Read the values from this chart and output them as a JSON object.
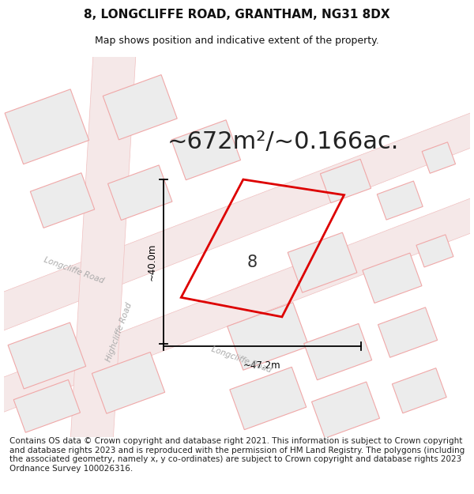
{
  "title": "8, LONGCLIFFE ROAD, GRANTHAM, NG31 8DX",
  "subtitle": "Map shows position and indicative extent of the property.",
  "area_text": "~672m²/~0.166ac.",
  "property_number": "8",
  "measure_v": "~40.0m",
  "measure_h": "~47.2m",
  "footer": "Contains OS data © Crown copyright and database right 2021. This information is subject to Crown copyright and database rights 2023 and is reproduced with the permission of HM Land Registry. The polygons (including the associated geometry, namely x, y co-ordinates) are subject to Crown copyright and database rights 2023 Ordnance Survey 100026316.",
  "bg_color": "#ffffff",
  "map_bg": "#ffffff",
  "road_fill": "#f5e8e8",
  "road_edge": "#f0c0c0",
  "bld_fill": "#ececec",
  "bld_edge": "#f0a8a8",
  "prop_color": "#dd0000",
  "label_color": "#aaaaaa",
  "title_fontsize": 11,
  "subtitle_fontsize": 9,
  "area_fontsize": 22,
  "footer_fontsize": 7.5
}
